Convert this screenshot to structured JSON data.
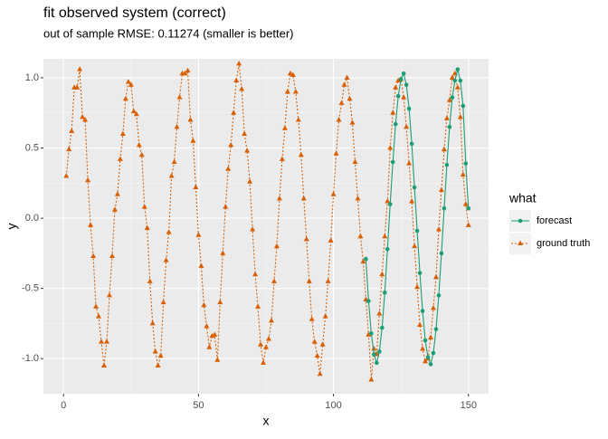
{
  "chart_data": {
    "type": "line",
    "title": "fit observed system (correct)",
    "subtitle": "out of sample RMSE: 0.11274 (smaller is better)",
    "x_label": "x",
    "y_label": "y",
    "legend_title": "what",
    "legend": "right",
    "grid": true,
    "xlim": [
      -7.45,
      157.45
    ],
    "ylim": [
      -1.25,
      1.135
    ],
    "xticks": [
      0,
      50,
      100,
      150
    ],
    "yticks": [
      {
        "value": -1,
        "label": "-1.0"
      },
      {
        "value": -0.5,
        "label": "-0.5"
      },
      {
        "value": 0,
        "label": "0.0"
      },
      {
        "value": 0.5,
        "label": "0.5"
      },
      {
        "value": 1,
        "label": "1.0"
      }
    ],
    "xminor": [
      -25,
      25,
      75,
      125
    ],
    "yminor": [
      -0.75,
      -0.25,
      0.25,
      0.75
    ],
    "series": [
      {
        "name": "forecast",
        "color": "#1b9e77",
        "style": "solid",
        "marker": "circle",
        "x": [
          112,
          113,
          114,
          115,
          116,
          117,
          118,
          119,
          120,
          121,
          122,
          123,
          124,
          125,
          126,
          127,
          128,
          129,
          130,
          131,
          132,
          133,
          134,
          135,
          136,
          137,
          138,
          139,
          140,
          141,
          142,
          143,
          144,
          145,
          146,
          147,
          148,
          149,
          150
        ],
        "values": [
          -0.29,
          -0.59,
          -0.82,
          -0.97,
          -1.03,
          -0.95,
          -0.78,
          -0.53,
          -0.22,
          0.1,
          0.4,
          0.67,
          0.87,
          0.99,
          1.03,
          0.95,
          0.78,
          0.53,
          0.22,
          -0.09,
          -0.39,
          -0.66,
          -0.87,
          -0.99,
          -1.04,
          -0.96,
          -0.79,
          -0.55,
          -0.25,
          0.07,
          0.38,
          0.65,
          0.86,
          0.98,
          1.06,
          0.98,
          0.8,
          0.39,
          0.07
        ]
      },
      {
        "name": "ground truth",
        "color": "#d95f02",
        "style": "dotted",
        "marker": "triangle",
        "x": [
          1,
          2,
          3,
          4,
          5,
          6,
          7,
          8,
          9,
          10,
          11,
          12,
          13,
          14,
          15,
          16,
          17,
          18,
          19,
          20,
          21,
          22,
          23,
          24,
          25,
          26,
          27,
          28,
          29,
          30,
          31,
          32,
          33,
          34,
          35,
          36,
          37,
          38,
          39,
          40,
          41,
          42,
          43,
          44,
          45,
          46,
          47,
          48,
          49,
          50,
          51,
          52,
          53,
          54,
          55,
          56,
          57,
          58,
          59,
          60,
          61,
          62,
          63,
          64,
          65,
          66,
          67,
          68,
          69,
          70,
          71,
          72,
          73,
          74,
          75,
          76,
          77,
          78,
          79,
          80,
          81,
          82,
          83,
          84,
          85,
          86,
          87,
          88,
          89,
          90,
          91,
          92,
          93,
          94,
          95,
          96,
          97,
          98,
          99,
          100,
          101,
          102,
          103,
          104,
          105,
          106,
          107,
          108,
          109,
          110,
          111,
          112,
          113,
          114,
          115,
          116,
          117,
          118,
          119,
          120,
          121,
          122,
          123,
          124,
          125,
          126,
          127,
          128,
          129,
          130,
          131,
          132,
          133,
          134,
          135,
          136,
          137,
          138,
          139,
          140,
          141,
          142,
          143,
          144,
          145,
          146,
          147,
          148,
          149,
          150
        ],
        "values": [
          0.3,
          0.49,
          0.62,
          0.93,
          0.93,
          1.06,
          0.72,
          0.7,
          0.27,
          -0.05,
          -0.27,
          -0.63,
          -0.7,
          -0.88,
          -1.05,
          -0.88,
          -0.55,
          -0.27,
          0.06,
          0.17,
          0.42,
          0.6,
          0.85,
          0.97,
          0.95,
          0.76,
          0.74,
          0.52,
          0.45,
          0.08,
          -0.07,
          -0.45,
          -0.75,
          -0.95,
          -1.05,
          -0.98,
          -0.6,
          -0.3,
          -0.1,
          0.3,
          0.4,
          0.65,
          0.86,
          1.03,
          1.03,
          1.05,
          0.7,
          0.55,
          0.22,
          -0.12,
          -0.34,
          -0.62,
          -0.77,
          -0.92,
          -0.84,
          -0.83,
          -1.01,
          -0.6,
          -0.25,
          0.08,
          0.35,
          0.52,
          0.75,
          0.98,
          1.1,
          0.92,
          0.6,
          0.48,
          0.26,
          -0.08,
          -0.4,
          -0.63,
          -0.9,
          -1.03,
          -0.92,
          -0.86,
          -0.73,
          -0.45,
          -0.2,
          0.14,
          0.42,
          0.64,
          0.9,
          1.03,
          1.02,
          0.9,
          0.7,
          0.45,
          0.14,
          -0.15,
          -0.45,
          -0.72,
          -0.88,
          -0.98,
          -1.11,
          -0.9,
          -0.7,
          -0.45,
          -0.16,
          0.17,
          0.46,
          0.7,
          0.82,
          0.95,
          1.0,
          0.85,
          0.68,
          0.4,
          0.14,
          -0.13,
          -0.31,
          -0.58,
          -0.83,
          -1.15,
          -0.93,
          -0.97,
          -0.68,
          -0.4,
          -0.13,
          0.12,
          0.5,
          0.75,
          0.93,
          0.98,
          0.99,
          0.86,
          0.65,
          0.39,
          0.12,
          -0.2,
          -0.49,
          -0.76,
          -0.93,
          -1.02,
          -1.0,
          -0.85,
          -0.64,
          -0.42,
          -0.08,
          0.2,
          0.49,
          0.71,
          0.84,
          1.0,
          1.03,
          0.93,
          0.72,
          0.31,
          0.1,
          -0.05
        ]
      }
    ]
  }
}
